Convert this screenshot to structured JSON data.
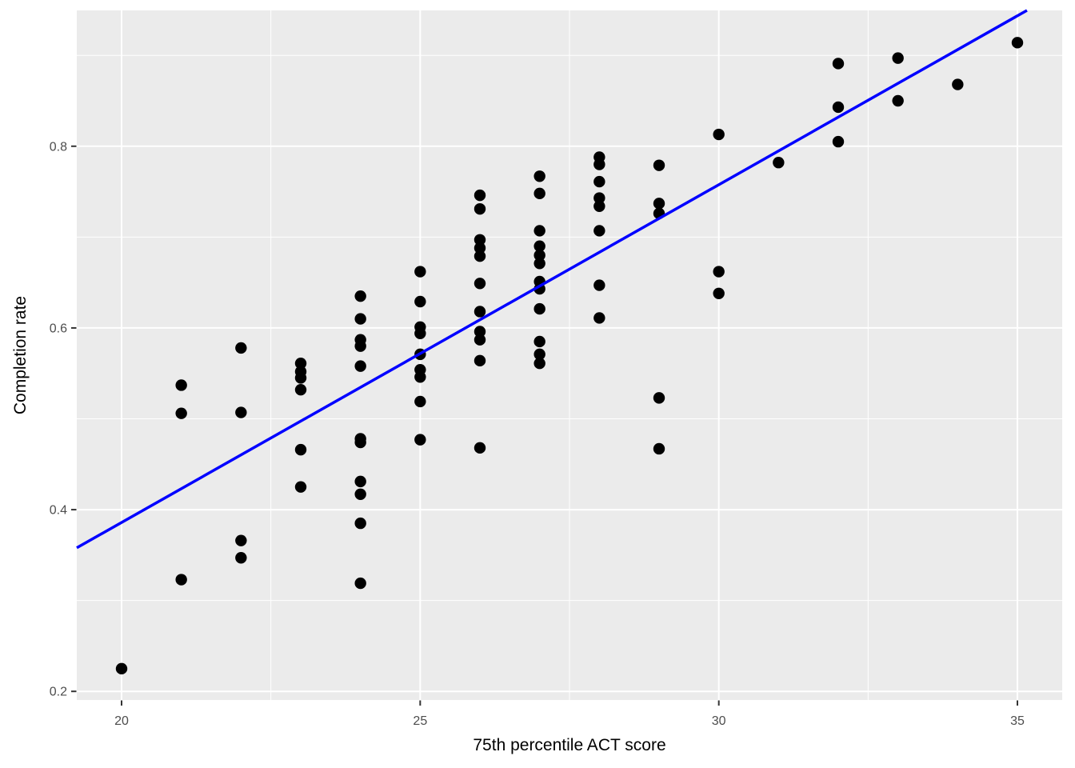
{
  "chart_data": {
    "type": "scatter",
    "title": "",
    "xlabel": "75th percentile ACT score",
    "ylabel": "Completion rate",
    "xlim": [
      19.25,
      35.75
    ],
    "ylim": [
      0.1905,
      0.9495
    ],
    "grid": true,
    "legend_position": "none",
    "x_major_ticks": [
      20,
      25,
      30,
      35
    ],
    "x_tick_labels": [
      "20",
      "25",
      "30",
      "35"
    ],
    "x_minor_ticks": [
      22.5,
      27.5,
      32.5
    ],
    "y_major_ticks": [
      0.2,
      0.4,
      0.6,
      0.8
    ],
    "y_tick_labels": [
      "0.2",
      "0.4",
      "0.6",
      "0.8"
    ],
    "y_minor_ticks": [
      0.3,
      0.5,
      0.7,
      0.9
    ],
    "points": [
      [
        20,
        0.225
      ],
      [
        21,
        0.537
      ],
      [
        21,
        0.506
      ],
      [
        21,
        0.323
      ],
      [
        22,
        0.578
      ],
      [
        22,
        0.507
      ],
      [
        22,
        0.366
      ],
      [
        22,
        0.347
      ],
      [
        23,
        0.561
      ],
      [
        23,
        0.552
      ],
      [
        23,
        0.545
      ],
      [
        23,
        0.532
      ],
      [
        23,
        0.466
      ],
      [
        23,
        0.425
      ],
      [
        24,
        0.635
      ],
      [
        24,
        0.61
      ],
      [
        24,
        0.587
      ],
      [
        24,
        0.58
      ],
      [
        24,
        0.558
      ],
      [
        24,
        0.478
      ],
      [
        24,
        0.474
      ],
      [
        24,
        0.431
      ],
      [
        24,
        0.417
      ],
      [
        24,
        0.385
      ],
      [
        24,
        0.319
      ],
      [
        25,
        0.662
      ],
      [
        25,
        0.629
      ],
      [
        25,
        0.601
      ],
      [
        25,
        0.594
      ],
      [
        25,
        0.571
      ],
      [
        25,
        0.554
      ],
      [
        25,
        0.546
      ],
      [
        25,
        0.519
      ],
      [
        25,
        0.477
      ],
      [
        26,
        0.746
      ],
      [
        26,
        0.731
      ],
      [
        26,
        0.697
      ],
      [
        26,
        0.688
      ],
      [
        26,
        0.679
      ],
      [
        26,
        0.649
      ],
      [
        26,
        0.618
      ],
      [
        26,
        0.596
      ],
      [
        26,
        0.587
      ],
      [
        26,
        0.564
      ],
      [
        26,
        0.468
      ],
      [
        27,
        0.767
      ],
      [
        27,
        0.748
      ],
      [
        27,
        0.707
      ],
      [
        27,
        0.69
      ],
      [
        27,
        0.68
      ],
      [
        27,
        0.671
      ],
      [
        27,
        0.651
      ],
      [
        27,
        0.643
      ],
      [
        27,
        0.621
      ],
      [
        27,
        0.585
      ],
      [
        27,
        0.571
      ],
      [
        27,
        0.561
      ],
      [
        28,
        0.788
      ],
      [
        28,
        0.78
      ],
      [
        28,
        0.761
      ],
      [
        28,
        0.743
      ],
      [
        28,
        0.734
      ],
      [
        28,
        0.707
      ],
      [
        28,
        0.647
      ],
      [
        28,
        0.611
      ],
      [
        29,
        0.779
      ],
      [
        29,
        0.737
      ],
      [
        29,
        0.726
      ],
      [
        29,
        0.523
      ],
      [
        29,
        0.467
      ],
      [
        30,
        0.813
      ],
      [
        30,
        0.662
      ],
      [
        30,
        0.638
      ],
      [
        31,
        0.782
      ],
      [
        32,
        0.891
      ],
      [
        32,
        0.843
      ],
      [
        32,
        0.805
      ],
      [
        33,
        0.897
      ],
      [
        33,
        0.85
      ],
      [
        34,
        0.868
      ],
      [
        35,
        0.914
      ]
    ],
    "trend_line": {
      "type": "linear",
      "x1": 19.25,
      "y1": 0.358,
      "x2": 35.16,
      "y2": 0.9495
    }
  },
  "style": {
    "panel_bg": "#EBEBEB",
    "grid_color": "#FFFFFF",
    "point_color": "#000000",
    "trend_color": "#0000FF",
    "tick_label_color": "#4D4D4D",
    "tick_mark_color": "#333333",
    "axis_title_color": "#000000",
    "outer_bg": "#FFFFFF"
  }
}
